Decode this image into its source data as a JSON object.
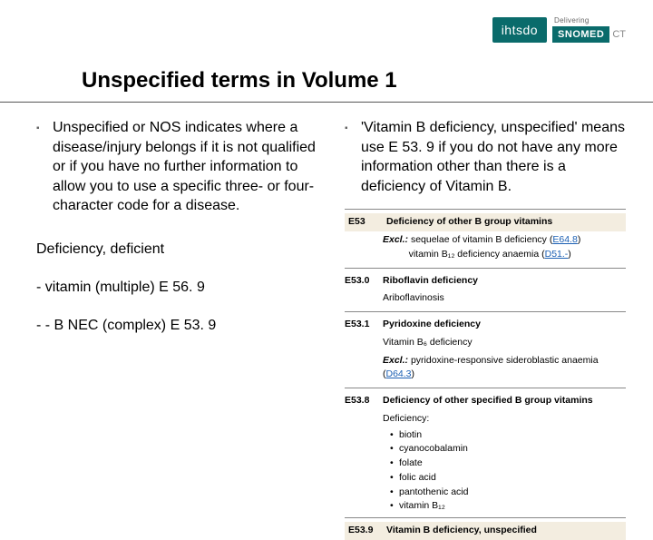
{
  "logo": {
    "ihtsdo": "ihtsdo",
    "delivering": "Delivering",
    "snomed": "SNOMED",
    "ct": "CT"
  },
  "title": "Unspecified terms in Volume 1",
  "left": {
    "bullet": "Unspecified or NOS indicates where a disease/injury belongs if it is not qualified or if you have no further information to allow you to use a specific three- or four-character code for a disease.",
    "heading": "Deficiency, deficient",
    "line1": "- vitamin (multiple) E 56. 9",
    "line2": "- - B NEC (complex) E 53. 9"
  },
  "right": {
    "bullet": " 'Vitamin B deficiency, unspecified' means use E 53. 9 if you do not have any more information other than there is a deficiency of Vitamin B.",
    "codes": {
      "e53": {
        "code": "E53",
        "text": "Deficiency of other B group vitamins"
      },
      "excl1a": "sequelae of vitamin B deficiency (",
      "excl1a_link": "E64.8",
      "excl1b": "vitamin B₁₂ deficiency anaemia (",
      "excl1b_link": "D51.-",
      "e530": {
        "code": "E53.0",
        "text": "Riboflavin deficiency"
      },
      "e530_sub": "Ariboflavinosis",
      "e531": {
        "code": "E53.1",
        "text": "Pyridoxine deficiency"
      },
      "e531_sub": "Vitamin B₆ deficiency",
      "excl2": "pyridoxine-responsive sideroblastic anaemia (",
      "excl2_link": "D64.3",
      "e538": {
        "code": "E53.8",
        "text": "Deficiency of other specified B group vitamins"
      },
      "def_label": "Deficiency:",
      "def_items": [
        "biotin",
        "cyanocobalamin",
        "folate",
        "folic acid",
        "pantothenic acid",
        "vitamin B₁₂"
      ],
      "e539": {
        "code": "E53.9",
        "text": "Vitamin B deficiency, unspecified"
      }
    }
  },
  "excl_label": "Excl.:",
  "colors": {
    "brand": "#0a6b6b",
    "link": "#1b5fb3",
    "shade": "#f3ede0"
  }
}
